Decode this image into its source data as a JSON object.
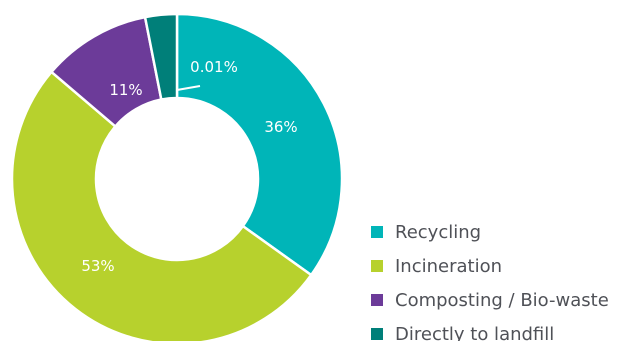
{
  "chart_data": {
    "type": "pie",
    "categories": [
      "Recycling",
      "Incineration",
      "Composting / Bio-waste",
      "Directly to landfill"
    ],
    "values": [
      36,
      53,
      11,
      0.01
    ],
    "value_labels": [
      "36%",
      "53%",
      "11%",
      "0.01%"
    ],
    "colors": [
      "#00b5b8",
      "#b7d12d",
      "#6c3b99",
      "#007f79"
    ],
    "legend": {
      "placement": "bottom-right"
    }
  }
}
